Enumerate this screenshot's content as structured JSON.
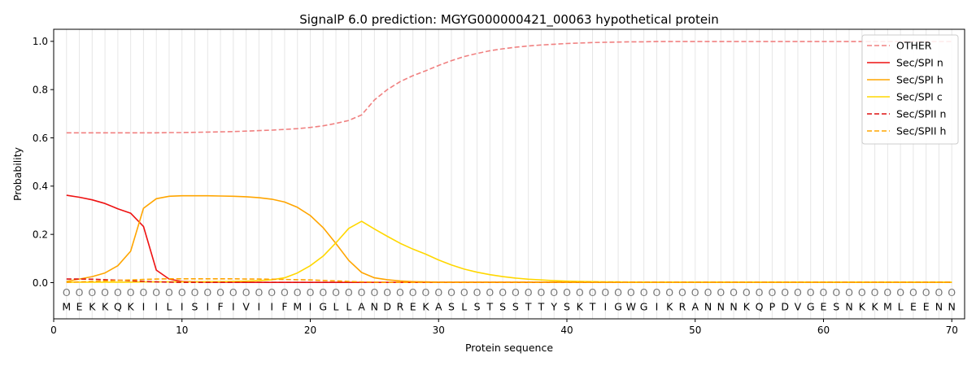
{
  "chart_data": {
    "type": "line",
    "title": "SignalP 6.0 prediction: MGYG000000421_00063 hypothetical protein",
    "xlabel": "Protein sequence",
    "ylabel": "Probability",
    "xlim": [
      0,
      71
    ],
    "ylim": [
      -0.15,
      1.05
    ],
    "x_ticks": [
      0,
      10,
      20,
      30,
      40,
      50,
      60,
      70
    ],
    "y_ticks": [
      0.0,
      0.2,
      0.4,
      0.6,
      0.8,
      1.0
    ],
    "x_tick_labels": [
      "0",
      "10",
      "20",
      "30",
      "40",
      "50",
      "60",
      "70"
    ],
    "y_tick_labels": [
      "0.0",
      "0.2",
      "0.4",
      "0.6",
      "0.8",
      "1.0"
    ],
    "legend_position": "top-right",
    "sequence": [
      "M",
      "E",
      "K",
      "K",
      "Q",
      "K",
      "I",
      "I",
      "L",
      "I",
      "S",
      "I",
      "F",
      "I",
      "V",
      "I",
      "I",
      "F",
      "M",
      "I",
      "G",
      "L",
      "L",
      "A",
      "N",
      "D",
      "R",
      "E",
      "K",
      "A",
      "S",
      "L",
      "S",
      "T",
      "S",
      "S",
      "T",
      "T",
      "Y",
      "S",
      "K",
      "T",
      "I",
      "G",
      "W",
      "G",
      "I",
      "K",
      "R",
      "A",
      "N",
      "N",
      "N",
      "K",
      "Q",
      "P",
      "D",
      "V",
      "G",
      "E",
      "S",
      "N",
      "K",
      "K",
      "M",
      "L",
      "E",
      "E",
      "N",
      "N"
    ],
    "region_marker": "O",
    "series": [
      {
        "name": "OTHER",
        "color": "#f08080",
        "dash": "dashed",
        "values": [
          0.621,
          0.621,
          0.621,
          0.621,
          0.621,
          0.621,
          0.621,
          0.621,
          0.622,
          0.622,
          0.623,
          0.624,
          0.625,
          0.626,
          0.628,
          0.63,
          0.632,
          0.635,
          0.638,
          0.643,
          0.65,
          0.66,
          0.672,
          0.695,
          0.757,
          0.8,
          0.833,
          0.858,
          0.878,
          0.9,
          0.92,
          0.937,
          0.95,
          0.961,
          0.969,
          0.976,
          0.981,
          0.985,
          0.988,
          0.991,
          0.993,
          0.995,
          0.996,
          0.997,
          0.998,
          0.998,
          0.999,
          0.999,
          0.999,
          0.999,
          0.999,
          0.999,
          0.999,
          0.999,
          0.999,
          0.999,
          0.999,
          0.999,
          0.999,
          0.999,
          0.999,
          0.999,
          0.999,
          0.999,
          0.999,
          0.999,
          0.999,
          0.999,
          0.999,
          0.999
        ]
      },
      {
        "name": "Sec/SPI n",
        "color": "#ee1111",
        "dash": "solid",
        "values": [
          0.362,
          0.354,
          0.343,
          0.328,
          0.306,
          0.288,
          0.233,
          0.052,
          0.015,
          0.005,
          0.003,
          0.002,
          0.002,
          0.002,
          0.001,
          0.001,
          0.001,
          0.001,
          0.001,
          0.001,
          0.001,
          0.001,
          0.001,
          0.001,
          0.001,
          0.001,
          0.001,
          0.001,
          0.001,
          0.001,
          0.001,
          0.001,
          0.001,
          0.001,
          0.001,
          0.001,
          0.001,
          0.001,
          0.001,
          0.001,
          0.001,
          0.001,
          0.001,
          0.001,
          0.001,
          0.001,
          0.001,
          0.001,
          0.001,
          0.001,
          0.001,
          0.001,
          0.001,
          0.001,
          0.001,
          0.001,
          0.001,
          0.001,
          0.001,
          0.001,
          0.001,
          0.001,
          0.001,
          0.001,
          0.001,
          0.001,
          0.001,
          0.001,
          0.001,
          0.001
        ]
      },
      {
        "name": "Sec/SPI h",
        "color": "#ffa500",
        "dash": "solid",
        "values": [
          0.005,
          0.015,
          0.025,
          0.04,
          0.07,
          0.13,
          0.308,
          0.348,
          0.358,
          0.36,
          0.36,
          0.36,
          0.359,
          0.358,
          0.356,
          0.352,
          0.346,
          0.334,
          0.312,
          0.278,
          0.228,
          0.162,
          0.092,
          0.042,
          0.02,
          0.012,
          0.007,
          0.004,
          0.003,
          0.002,
          0.002,
          0.002,
          0.002,
          0.002,
          0.002,
          0.002,
          0.002,
          0.002,
          0.002,
          0.002,
          0.002,
          0.002,
          0.002,
          0.002,
          0.002,
          0.002,
          0.002,
          0.002,
          0.002,
          0.002,
          0.002,
          0.002,
          0.002,
          0.002,
          0.002,
          0.002,
          0.002,
          0.002,
          0.002,
          0.002,
          0.002,
          0.002,
          0.002,
          0.002,
          0.002,
          0.002,
          0.002,
          0.002,
          0.002,
          0.002
        ]
      },
      {
        "name": "Sec/SPI c",
        "color": "#ffd700",
        "dash": "solid",
        "values": [
          0.002,
          0.002,
          0.002,
          0.002,
          0.002,
          0.002,
          0.003,
          0.003,
          0.003,
          0.003,
          0.003,
          0.004,
          0.004,
          0.005,
          0.006,
          0.008,
          0.012,
          0.02,
          0.04,
          0.07,
          0.11,
          0.165,
          0.225,
          0.254,
          0.222,
          0.192,
          0.163,
          0.139,
          0.118,
          0.094,
          0.073,
          0.056,
          0.043,
          0.033,
          0.025,
          0.019,
          0.014,
          0.011,
          0.008,
          0.006,
          0.005,
          0.004,
          0.003,
          0.003,
          0.002,
          0.002,
          0.002,
          0.002,
          0.002,
          0.002,
          0.002,
          0.002,
          0.002,
          0.002,
          0.002,
          0.002,
          0.002,
          0.002,
          0.002,
          0.002,
          0.002,
          0.002,
          0.002,
          0.002,
          0.002,
          0.002,
          0.002,
          0.002,
          0.002,
          0.002
        ]
      },
      {
        "name": "Sec/SPII n",
        "color": "#dd1111",
        "dash": "dashed",
        "values": [
          0.015,
          0.015,
          0.014,
          0.012,
          0.01,
          0.008,
          0.005,
          0.003,
          0.002,
          0.001,
          0.001,
          0.001,
          0.001,
          0.001,
          0.001,
          0.001,
          0.001,
          0.001,
          0.001,
          0.001,
          0.001,
          0.001,
          0.001,
          0.001,
          0.001,
          0.001,
          0.001,
          0.001,
          0.001,
          0.001,
          0.001,
          0.001,
          0.001,
          0.001,
          0.001,
          0.001,
          0.001,
          0.001,
          0.001,
          0.001,
          0.001,
          0.001,
          0.001,
          0.001,
          0.001,
          0.001,
          0.001,
          0.001,
          0.001,
          0.001,
          0.001,
          0.001,
          0.001,
          0.001,
          0.001,
          0.001,
          0.001,
          0.001,
          0.001,
          0.001,
          0.001,
          0.001,
          0.001,
          0.001,
          0.001,
          0.001,
          0.001,
          0.001,
          0.001,
          0.001
        ]
      },
      {
        "name": "Sec/SPII h",
        "color": "#ffa500",
        "dash": "dashed",
        "values": [
          0.001,
          0.003,
          0.005,
          0.007,
          0.009,
          0.011,
          0.013,
          0.015,
          0.016,
          0.016,
          0.016,
          0.016,
          0.016,
          0.016,
          0.015,
          0.015,
          0.014,
          0.013,
          0.012,
          0.011,
          0.009,
          0.007,
          0.005,
          0.003,
          0.002,
          0.001,
          0.001,
          0.001,
          0.001,
          0.001,
          0.001,
          0.001,
          0.001,
          0.001,
          0.001,
          0.001,
          0.001,
          0.001,
          0.001,
          0.001,
          0.001,
          0.001,
          0.001,
          0.001,
          0.001,
          0.001,
          0.001,
          0.001,
          0.001,
          0.001,
          0.001,
          0.001,
          0.001,
          0.001,
          0.001,
          0.001,
          0.001,
          0.001,
          0.001,
          0.001,
          0.001,
          0.001,
          0.001,
          0.001,
          0.001,
          0.001,
          0.001,
          0.001,
          0.001,
          0.001
        ]
      }
    ]
  }
}
